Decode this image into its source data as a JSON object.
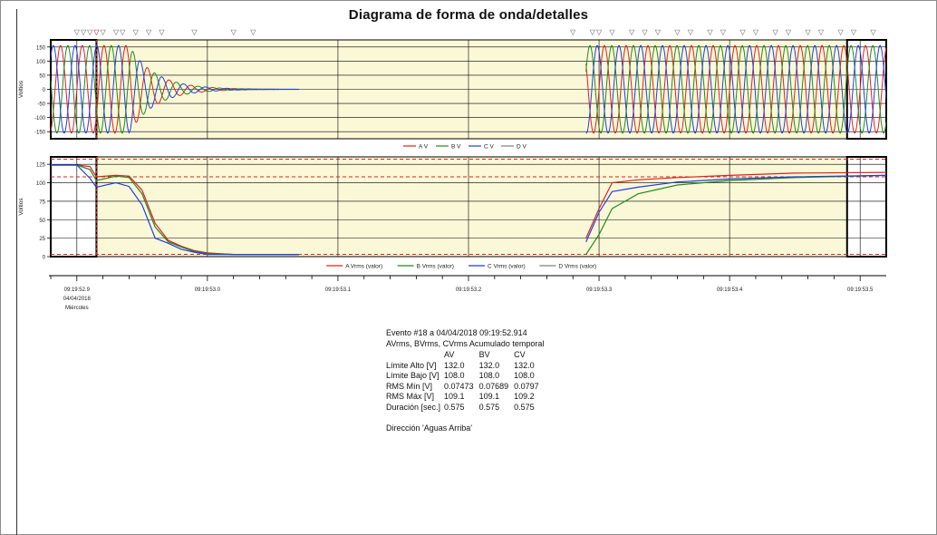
{
  "window": {
    "title": "Diagrama de forma de onda/detalles"
  },
  "colors": {
    "phase_a": "#e02020",
    "phase_b": "#1f8a1f",
    "phase_c": "#1f3fe0",
    "phase_d": "#808080",
    "event_fill": "#fbf8d8",
    "limit_line": "#e02020"
  },
  "chart_data": [
    {
      "type": "line",
      "title": "Diagrama de forma de onda/detalles",
      "ylabel": "Voltios",
      "ylim": [
        -175,
        175
      ],
      "yticks": [
        "150",
        "100",
        "50",
        "0",
        "-50",
        "-100",
        "-150"
      ],
      "ytick_values": [
        150,
        100,
        50,
        0,
        -50,
        -100,
        -150
      ],
      "xlim": [
        52.88,
        53.52
      ],
      "grid": true,
      "event_span": [
        52.915,
        53.49
      ],
      "waveform": {
        "frequency_hz": 60,
        "amplitude": 155,
        "gap": [
          53.07,
          53.3
        ],
        "decay_start": 52.94,
        "decay_tau": 0.02,
        "recovery_start": 53.29
      },
      "series": [
        {
          "name": "A V",
          "phase_deg": 0
        },
        {
          "name": "B V",
          "phase_deg": -120
        },
        {
          "name": "C V",
          "phase_deg": 120
        },
        {
          "name": "D V",
          "phase_deg": null
        }
      ],
      "legend": {
        "placement": "bottom-center"
      }
    },
    {
      "type": "line",
      "ylabel": "Voltios",
      "ylim": [
        0,
        135
      ],
      "yticks": [
        "125",
        "100",
        "75",
        "50",
        "25",
        "0"
      ],
      "ytick_values": [
        125,
        100,
        75,
        50,
        25,
        0
      ],
      "xlim": [
        52.88,
        53.52
      ],
      "grid": true,
      "limits": {
        "high": 132.0,
        "low": 108.0,
        "bottom": 3.0
      },
      "gap": [
        53.07,
        53.29
      ],
      "series": [
        {
          "name": "A Vrms (valor)",
          "x": [
            52.88,
            52.9,
            52.91,
            52.915,
            52.93,
            52.94,
            52.95,
            52.96,
            52.97,
            52.98,
            52.99,
            53.0,
            53.02,
            53.04,
            53.06,
            53.07
          ],
          "values": [
            124,
            124,
            122,
            108,
            110,
            109,
            90,
            45,
            22,
            14,
            8,
            5,
            3,
            3,
            3,
            3
          ]
        },
        {
          "name": "B Vrms (valor)",
          "x": [
            52.88,
            52.9,
            52.91,
            52.915,
            52.93,
            52.94,
            52.95,
            52.96,
            52.97,
            52.98,
            52.99,
            53.0,
            53.02,
            53.04,
            53.06,
            53.07
          ],
          "values": [
            124,
            124,
            118,
            103,
            109,
            107,
            85,
            40,
            20,
            13,
            7,
            4,
            3,
            3,
            3,
            3
          ]
        },
        {
          "name": "C Vrms (valor)",
          "x": [
            52.88,
            52.9,
            52.91,
            52.915,
            52.93,
            52.94,
            52.95,
            52.96,
            52.97,
            52.98,
            52.99,
            53.0,
            53.02,
            53.04,
            53.06,
            53.07
          ],
          "values": [
            124,
            124,
            106,
            94,
            100,
            95,
            70,
            25,
            18,
            10,
            6,
            3,
            3,
            3,
            3,
            3
          ]
        },
        {
          "name": "D Vrms (valor)",
          "x": [],
          "values": []
        }
      ],
      "recovery": [
        {
          "name": "A",
          "x": [
            53.29,
            53.3,
            53.31,
            53.33,
            53.36,
            53.4,
            53.45,
            53.52
          ],
          "values": [
            25,
            65,
            100,
            104,
            107,
            110,
            113,
            114
          ]
        },
        {
          "name": "B",
          "x": [
            53.29,
            53.3,
            53.31,
            53.33,
            53.36,
            53.4,
            53.45,
            53.52
          ],
          "values": [
            3,
            30,
            65,
            85,
            97,
            103,
            107,
            110
          ]
        },
        {
          "name": "C",
          "x": [
            53.29,
            53.3,
            53.31,
            53.33,
            53.36,
            53.4,
            53.45,
            53.52
          ],
          "values": [
            20,
            60,
            88,
            94,
            101,
            105,
            108,
            110
          ]
        }
      ],
      "legend": {
        "placement": "bottom-center"
      }
    }
  ],
  "time_axis": {
    "ticks": [
      "09:19:52.9",
      "09:19:53.0",
      "09:19:53.1",
      "09:19:53.2",
      "09:19:53.3",
      "09:19:53.4",
      "09:19:53.5"
    ],
    "tick_values": [
      52.9,
      53.0,
      53.1,
      53.2,
      53.3,
      53.4,
      53.5
    ],
    "date_line": "04/04/2018",
    "day_line": "Miércoles"
  },
  "markers": {
    "left": [
      52.9,
      52.905,
      52.91,
      52.915,
      52.92,
      52.93,
      52.935,
      52.945,
      52.955,
      52.965,
      52.99,
      53.02,
      53.035
    ],
    "right": [
      53.28,
      53.295,
      53.3,
      53.31,
      53.325,
      53.335,
      53.345,
      53.36,
      53.37,
      53.385,
      53.395,
      53.41,
      53.42,
      53.435,
      53.445,
      53.46,
      53.47,
      53.485,
      53.495,
      53.51
    ],
    "active": 52.915,
    "glyph": "▽"
  },
  "summary": {
    "event_line": "Evento #18 a 04/04/2018 09:19:52.914",
    "subtitle": "AVrms, BVrms, CVrms Acumulado temporal",
    "columns": [
      "",
      "AV",
      "BV",
      "CV"
    ],
    "rows": [
      {
        "label": "Límite Alto [V]",
        "values": [
          "132.0",
          "132.0",
          "132.0"
        ]
      },
      {
        "label": "Límite Bajo [V]",
        "values": [
          "108.0",
          "108.0",
          "108.0"
        ]
      },
      {
        "label": "RMS Mín [V]",
        "values": [
          "0.07473",
          "0.07689",
          "0.0797"
        ]
      },
      {
        "label": "RMS Máx [V]",
        "values": [
          "109.1",
          "109.1",
          "109.2"
        ]
      },
      {
        "label": "Duración [sec.]",
        "values": [
          "0.575",
          "0.575",
          "0.575"
        ]
      }
    ],
    "direction": "Dirección  'Aguas Arriba'"
  }
}
